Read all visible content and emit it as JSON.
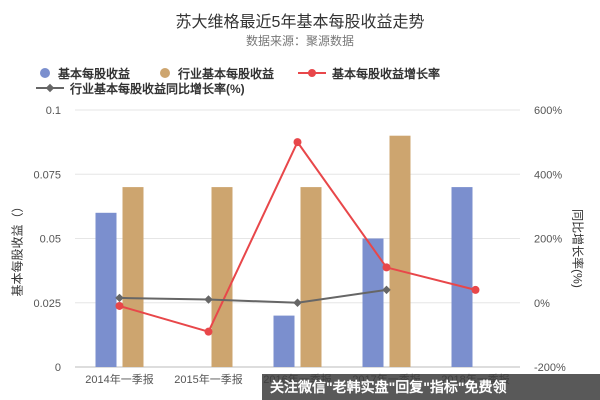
{
  "title": "苏大维格最近5年基本每股收益走势",
  "subtitle": "数据来源：聚源数据",
  "colors": {
    "eps_bar": "#7b8fce",
    "industry_bar": "#cda56f",
    "growth_line": "#e8474a",
    "industry_growth_line": "#666666",
    "axis_text": "#555555",
    "grid": "#e6e6e6"
  },
  "watermark": "关注微信\"老韩实盘\"回复\"指标\"免费领",
  "chart_data": {
    "type": "bar",
    "categories": [
      "2014年一季报",
      "2015年一季报",
      "2016年一季报",
      "2017年一季报",
      "2018年一季报"
    ],
    "tick_labels": [
      "2014年一季报",
      "2015年一季报",
      "2016年一季报",
      "2017年一季报",
      "2018年一季报"
    ],
    "ylabel": "基本每股收益（）",
    "y2label": "同比增长率(%)",
    "ylim": [
      0,
      0.1
    ],
    "yticks": [
      "0",
      "0.025",
      "0.05",
      "0.075",
      "0.1"
    ],
    "y2lim": [
      -200,
      600
    ],
    "y2ticks": [
      "-200%",
      "0%",
      "200%",
      "400%",
      "600%"
    ],
    "legend_position": "top-left",
    "series": [
      {
        "name": "基本每股收益",
        "kind": "bar",
        "axis": "left",
        "values": [
          0.06,
          null,
          0.02,
          0.05,
          0.07
        ]
      },
      {
        "name": "行业基本每股收益",
        "kind": "bar",
        "axis": "left",
        "values": [
          0.07,
          0.07,
          0.07,
          0.09,
          null
        ]
      },
      {
        "name": "基本每股收益增长率",
        "kind": "line",
        "axis": "right",
        "marker": "circle",
        "values": [
          -10,
          -90,
          500,
          110,
          40
        ]
      },
      {
        "name": "行业基本每股收益同比增长率(%)",
        "kind": "line",
        "axis": "right",
        "marker": "diamond",
        "values": [
          15,
          10,
          0,
          40,
          null
        ]
      }
    ]
  }
}
